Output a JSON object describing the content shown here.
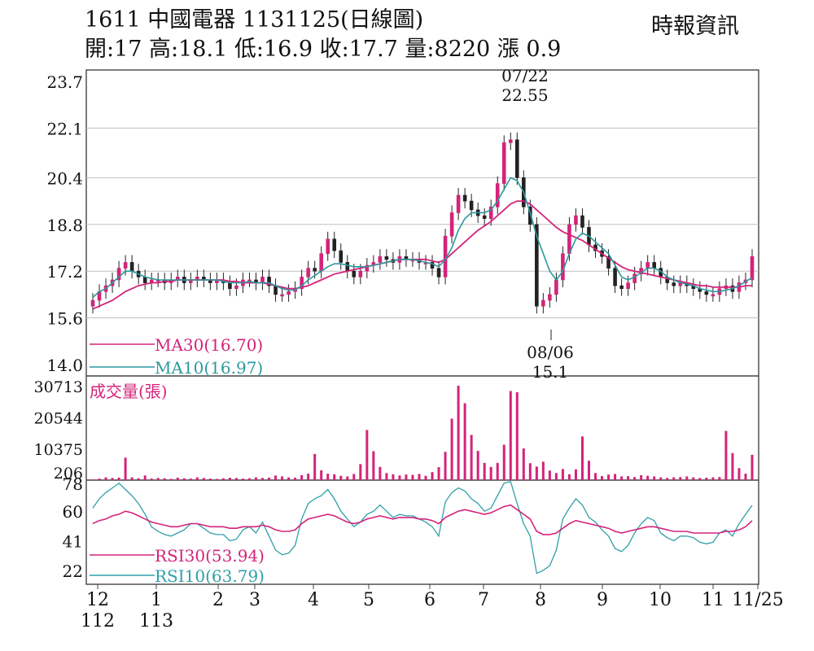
{
  "header": {
    "title": "1611  中國電器 1131125(日線圖)",
    "ohlc": "開:17 高:18.1 低:16.9 收:17.7 量:8220 漲 0.9",
    "source": "時報資訊"
  },
  "colors": {
    "ma30": "#d4237a",
    "ma10": "#2a9a9e",
    "volume": "#d4237a",
    "rsi30": "#d4237a",
    "rsi10": "#2fa0a8",
    "candle": "#d4237a",
    "frame": "#444444",
    "grid": "#bfbfbf"
  },
  "chart_data": [
    {
      "type": "candlestick",
      "y_ticks": [
        "23.7",
        "22.1",
        "20.4",
        "18.8",
        "17.2",
        "15.6",
        "14.0"
      ],
      "ylim": [
        14.0,
        23.7
      ],
      "legend": [
        {
          "key": "ma30",
          "label": "MA30(16.70)"
        },
        {
          "key": "ma10",
          "label": "MA10(16.97)"
        }
      ],
      "annotations": [
        {
          "date": "07/22",
          "value": "22.55",
          "y": 22.55
        },
        {
          "date": "08/06",
          "value": "15.1",
          "y": 15.1
        }
      ],
      "close_series": [
        16.2,
        16.5,
        16.7,
        16.9,
        17.3,
        17.5,
        17.2,
        17.0,
        16.8,
        16.9,
        16.9,
        16.8,
        16.9,
        17.0,
        16.8,
        16.9,
        17.0,
        16.9,
        16.8,
        16.9,
        16.8,
        16.6,
        16.7,
        16.9,
        16.9,
        16.8,
        17.0,
        16.7,
        16.4,
        16.4,
        16.5,
        16.6,
        17.0,
        17.3,
        17.2,
        17.8,
        18.3,
        17.9,
        17.5,
        17.2,
        17.0,
        17.2,
        17.4,
        17.5,
        17.7,
        17.6,
        17.5,
        17.7,
        17.6,
        17.6,
        17.5,
        17.5,
        17.3,
        17.0,
        18.4,
        19.2,
        19.8,
        19.6,
        19.3,
        19.1,
        19.0,
        19.4,
        20.2,
        21.6,
        21.7,
        20.4,
        19.4,
        18.8,
        16.0,
        16.2,
        16.4,
        16.9,
        17.8,
        18.8,
        19.1,
        18.7,
        18.1,
        17.9,
        17.7,
        17.3,
        16.7,
        16.6,
        16.8,
        17.1,
        17.3,
        17.5,
        17.3,
        17.0,
        16.8,
        16.7,
        16.8,
        16.7,
        16.6,
        16.5,
        16.4,
        16.4,
        16.6,
        16.7,
        16.5,
        16.8,
        16.9,
        17.7
      ],
      "ma10": [
        16.3,
        16.5,
        16.6,
        16.8,
        17.0,
        17.2,
        17.2,
        17.1,
        17.0,
        16.95,
        16.9,
        16.9,
        16.9,
        16.9,
        16.9,
        16.9,
        16.9,
        16.9,
        16.9,
        16.9,
        16.85,
        16.8,
        16.8,
        16.8,
        16.85,
        16.8,
        16.8,
        16.8,
        16.7,
        16.6,
        16.55,
        16.55,
        16.7,
        16.9,
        17.05,
        17.2,
        17.35,
        17.45,
        17.45,
        17.4,
        17.35,
        17.35,
        17.35,
        17.4,
        17.45,
        17.5,
        17.55,
        17.6,
        17.6,
        17.6,
        17.55,
        17.5,
        17.45,
        17.35,
        17.6,
        18.0,
        18.6,
        19.0,
        19.2,
        19.2,
        19.2,
        19.3,
        19.6,
        20.0,
        20.4,
        20.3,
        19.9,
        19.2,
        18.4,
        17.8,
        17.2,
        16.9,
        17.2,
        17.8,
        18.3,
        18.5,
        18.4,
        18.2,
        18.0,
        17.8,
        17.4,
        17.0,
        16.9,
        17.0,
        17.15,
        17.3,
        17.3,
        17.2,
        17.0,
        16.9,
        16.8,
        16.75,
        16.7,
        16.6,
        16.55,
        16.5,
        16.5,
        16.55,
        16.6,
        16.7,
        16.85,
        16.97
      ],
      "ma30": [
        15.9,
        16.0,
        16.1,
        16.2,
        16.35,
        16.5,
        16.6,
        16.7,
        16.75,
        16.8,
        16.8,
        16.85,
        16.85,
        16.9,
        16.9,
        16.9,
        16.9,
        16.9,
        16.9,
        16.9,
        16.9,
        16.85,
        16.85,
        16.8,
        16.8,
        16.8,
        16.8,
        16.75,
        16.7,
        16.65,
        16.6,
        16.6,
        16.65,
        16.7,
        16.8,
        16.9,
        17.0,
        17.1,
        17.15,
        17.2,
        17.25,
        17.3,
        17.35,
        17.4,
        17.45,
        17.5,
        17.55,
        17.6,
        17.6,
        17.6,
        17.6,
        17.6,
        17.55,
        17.5,
        17.6,
        17.8,
        18.0,
        18.2,
        18.4,
        18.6,
        18.75,
        18.9,
        19.1,
        19.3,
        19.5,
        19.6,
        19.6,
        19.5,
        19.3,
        19.1,
        18.9,
        18.7,
        18.55,
        18.45,
        18.35,
        18.25,
        18.1,
        17.95,
        17.8,
        17.65,
        17.5,
        17.35,
        17.25,
        17.2,
        17.15,
        17.1,
        17.05,
        17.0,
        16.95,
        16.9,
        16.85,
        16.8,
        16.75,
        16.7,
        16.7,
        16.65,
        16.65,
        16.65,
        16.65,
        16.65,
        16.7,
        16.7
      ]
    },
    {
      "type": "bar",
      "title": "成交量(張)",
      "y_ticks": [
        "30713",
        "20544",
        "10375",
        "206"
      ],
      "ylim": [
        0,
        30713
      ],
      "values": [
        206,
        500,
        900,
        700,
        800,
        7300,
        900,
        600,
        1500,
        500,
        700,
        600,
        400,
        800,
        600,
        500,
        900,
        700,
        500,
        400,
        600,
        800,
        700,
        500,
        600,
        900,
        700,
        800,
        1500,
        1200,
        900,
        800,
        1600,
        2100,
        8500,
        3200,
        2100,
        1900,
        1400,
        1200,
        2000,
        5200,
        16300,
        9400,
        4300,
        2300,
        1900,
        1500,
        1800,
        1700,
        2000,
        1400,
        2600,
        4200,
        9200,
        20000,
        30713,
        25000,
        14700,
        9500,
        5600,
        4300,
        5600,
        11500,
        29000,
        28600,
        10300,
        5500,
        4400,
        6000,
        3100,
        2300,
        3600,
        1900,
        3500,
        14200,
        6300,
        2300,
        1300,
        1800,
        2000,
        1200,
        1300,
        1000,
        1600,
        1400,
        1200,
        900,
        700,
        900,
        1000,
        1200,
        900,
        700,
        800,
        900,
        1000,
        16000,
        8800,
        3900,
        2100,
        8220
      ]
    },
    {
      "type": "line",
      "y_ticks": [
        "78",
        "60",
        "41",
        "22"
      ],
      "ylim": [
        13,
        80
      ],
      "legend": [
        {
          "key": "rsi30",
          "label": "RSI30(53.94)"
        },
        {
          "key": "rsi10",
          "label": "RSI10(63.79)"
        }
      ],
      "rsi30": [
        52,
        54,
        55,
        57,
        58,
        60,
        59,
        57,
        55,
        53,
        52,
        51,
        50,
        50,
        51,
        52,
        52,
        51,
        50,
        50,
        50,
        49,
        49,
        50,
        50,
        50,
        51,
        50,
        48,
        47,
        47,
        48,
        52,
        55,
        56,
        57,
        58,
        57,
        55,
        53,
        52,
        53,
        55,
        56,
        57,
        56,
        55,
        56,
        56,
        56,
        55,
        55,
        54,
        52,
        56,
        58,
        60,
        61,
        60,
        59,
        58,
        59,
        61,
        63,
        64,
        61,
        58,
        55,
        47,
        45,
        45,
        46,
        49,
        52,
        54,
        53,
        52,
        51,
        50,
        49,
        47,
        46,
        47,
        48,
        49,
        50,
        50,
        49,
        48,
        47,
        47,
        47,
        46,
        46,
        46,
        46,
        46,
        47,
        47,
        48,
        50,
        53.94
      ],
      "rsi10": [
        62,
        68,
        72,
        75,
        78,
        74,
        70,
        65,
        58,
        50,
        47,
        45,
        44,
        46,
        48,
        52,
        52,
        49,
        46,
        45,
        45,
        41,
        42,
        48,
        50,
        46,
        53,
        44,
        35,
        32,
        33,
        38,
        55,
        65,
        68,
        70,
        74,
        68,
        60,
        55,
        50,
        53,
        58,
        60,
        64,
        60,
        56,
        58,
        57,
        57,
        55,
        53,
        50,
        44,
        66,
        72,
        75,
        73,
        68,
        65,
        60,
        62,
        70,
        78,
        79,
        65,
        52,
        44,
        20,
        22,
        25,
        35,
        55,
        62,
        68,
        64,
        56,
        53,
        48,
        44,
        36,
        34,
        38,
        46,
        52,
        56,
        54,
        46,
        43,
        41,
        44,
        44,
        43,
        40,
        39,
        40,
        46,
        48,
        44,
        52,
        58,
        63.79
      ]
    }
  ],
  "x_axis": {
    "labels": [
      {
        "text": "12",
        "sub": "112"
      },
      {
        "text": "1",
        "sub": "113"
      },
      {
        "text": "2"
      },
      {
        "text": "3"
      },
      {
        "text": "4"
      },
      {
        "text": "5"
      },
      {
        "text": "6"
      },
      {
        "text": "7"
      },
      {
        "text": "8"
      },
      {
        "text": "9"
      },
      {
        "text": "10"
      },
      {
        "text": "11"
      },
      {
        "text": "11/25"
      }
    ]
  }
}
